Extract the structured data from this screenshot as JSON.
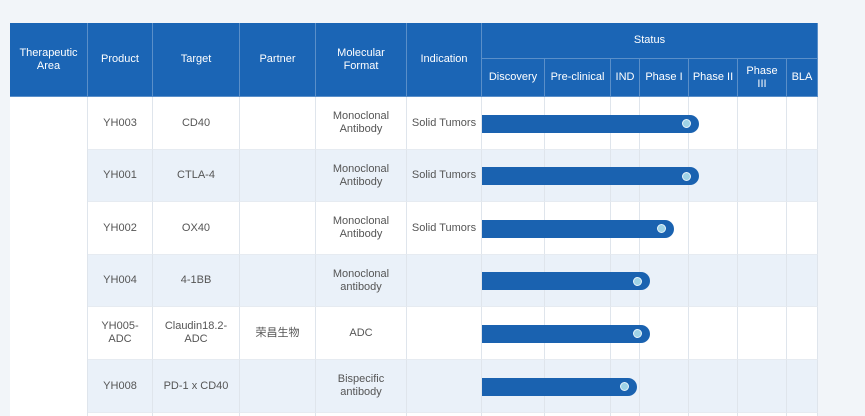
{
  "header": {
    "columns": [
      "Therapeutic Area",
      "Product",
      "Target",
      "Partner",
      "Molecular Format",
      "Indication"
    ],
    "status": "Status",
    "stages": [
      "Discovery",
      "Pre-clinical",
      "IND",
      "Phase I",
      "Phase II",
      "Phase III",
      "BLA"
    ]
  },
  "rows": [
    {
      "product": "YH003",
      "target": "CD40",
      "format": "Monoclonal Antibody",
      "indication": "Solid Tumors",
      "progress": 4.2
    },
    {
      "product": "YH001",
      "target": "CTLA-4",
      "format": "Monoclonal Antibody",
      "indication": "Solid Tumors",
      "progress": 4.2
    },
    {
      "product": "YH002",
      "target": "OX40",
      "format": "Monoclonal Antibody",
      "indication": "Solid Tumors",
      "progress": 3.7
    },
    {
      "product": "YH004",
      "target": "4-1BB",
      "format": "Monoclonal antibody",
      "progress": 3.2
    },
    {
      "product": "YH005-ADC",
      "target": "Claudin18.2-ADC",
      "partner": "荣昌生物",
      "format": "ADC",
      "progress": 3.2
    },
    {
      "product": "YH008",
      "target": "PD-1 x CD40",
      "format": "Bispecific antibody",
      "progress": 2.9
    }
  ]
}
